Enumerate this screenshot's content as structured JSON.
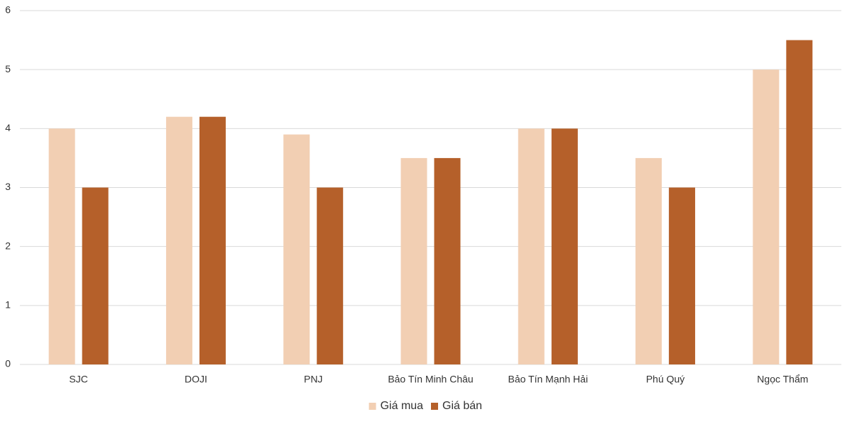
{
  "chart_data": {
    "type": "bar",
    "categories": [
      "SJC",
      "DOJI",
      "PNJ",
      "Bảo Tín Minh Châu",
      "Bảo Tín Mạnh Hải",
      "Phú Quý",
      "Ngọc Thẩm"
    ],
    "series": [
      {
        "name": "Giá mua",
        "color": "#f2cfb3",
        "values": [
          4,
          4.2,
          3.9,
          3.5,
          4,
          3.5,
          5
        ]
      },
      {
        "name": "Giá bán",
        "color": "#b5602a",
        "values": [
          3,
          4.2,
          3,
          3.5,
          4,
          3,
          5.5
        ]
      }
    ],
    "ylim": [
      0,
      6
    ],
    "yticks": [
      0,
      1,
      2,
      3,
      4,
      5,
      6
    ],
    "grid": true,
    "legend": "bottom"
  }
}
